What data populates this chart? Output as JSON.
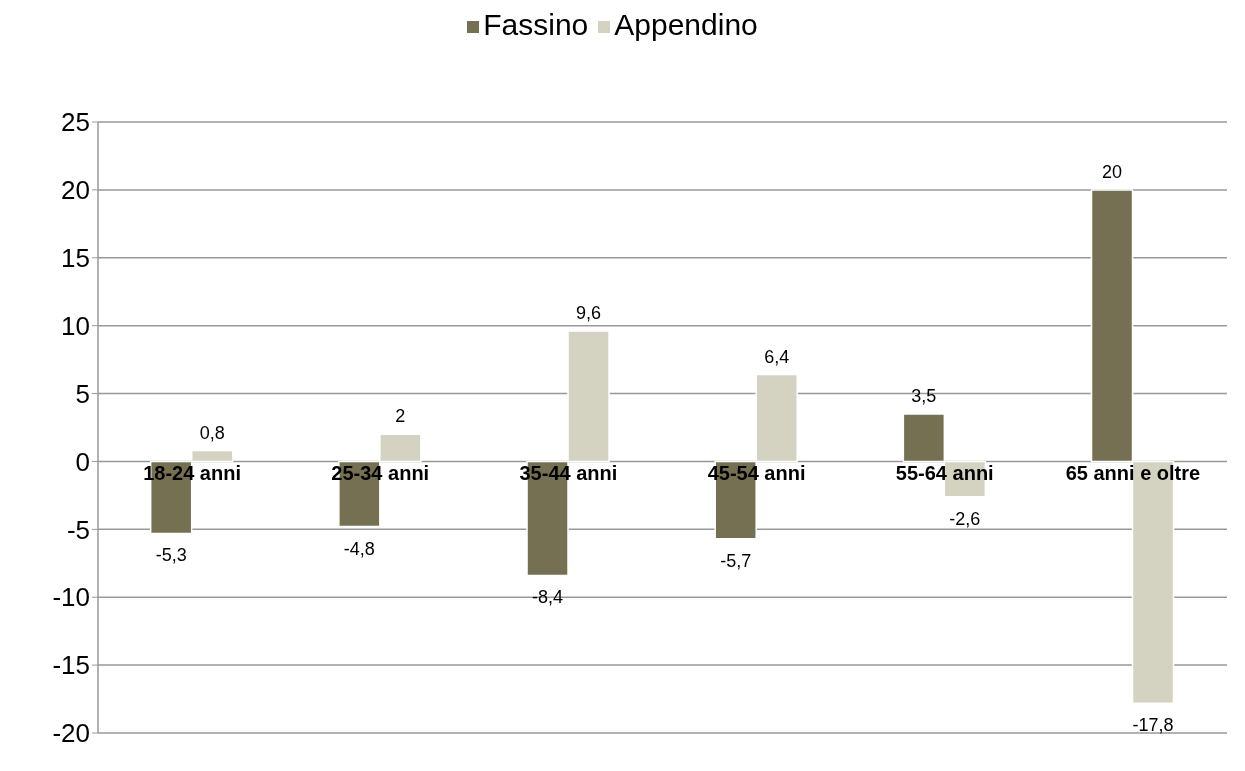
{
  "chart_data": {
    "type": "bar",
    "categories": [
      "18-24 anni",
      "25-34 anni",
      "35-44 anni",
      "45-54 anni",
      "55-64 anni",
      "65 anni e oltre"
    ],
    "series": [
      {
        "name": "Fassino",
        "color": "#767052",
        "values": [
          -5.3,
          -4.8,
          -8.4,
          -5.7,
          3.5,
          20
        ],
        "value_labels": [
          "-5,3",
          "-4,8",
          "-8,4",
          "-5,7",
          "3,5",
          "20"
        ]
      },
      {
        "name": "Appendino",
        "color": "#d4d3c1",
        "values": [
          0.8,
          2,
          9.6,
          6.4,
          -2.6,
          -17.8
        ],
        "value_labels": [
          "0,8",
          "2",
          "9,6",
          "6,4",
          "-2,6",
          "-17,8"
        ]
      }
    ],
    "ylim": [
      -20,
      25
    ],
    "yticks": [
      -20,
      -15,
      -10,
      -5,
      0,
      5,
      10,
      15,
      20,
      25
    ],
    "grid": "y",
    "legend": "top"
  }
}
